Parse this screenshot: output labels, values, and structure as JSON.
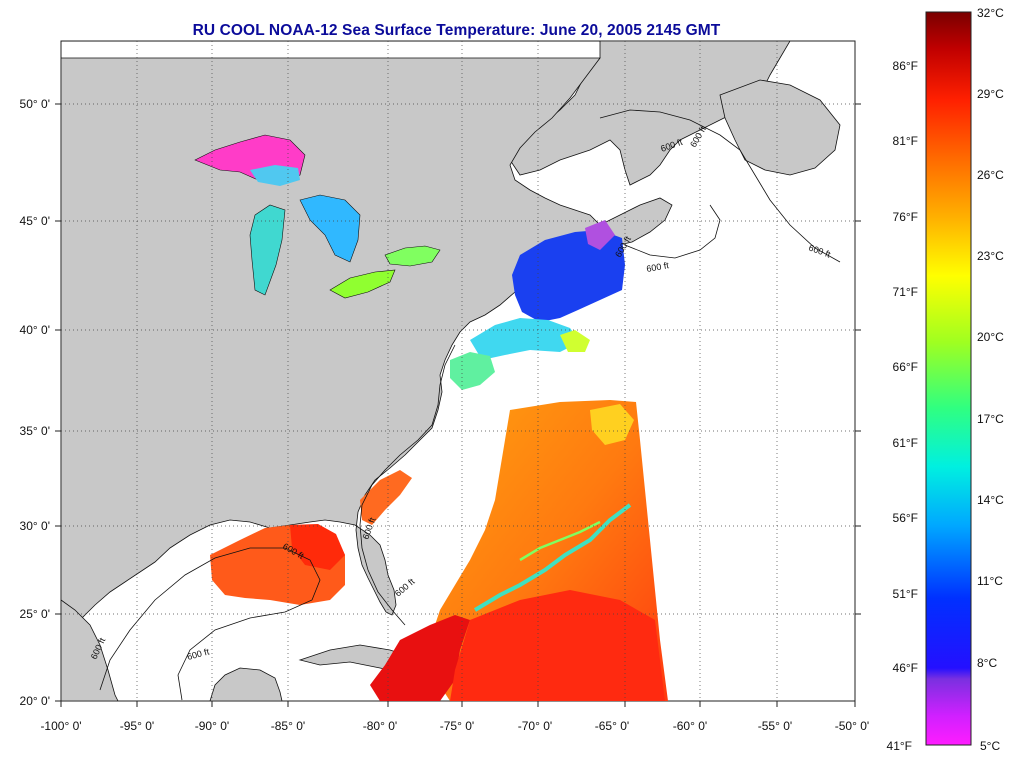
{
  "title": "RU COOL  NOAA-12  Sea Surface Temperature:  June 20, 2005 2145 GMT",
  "map": {
    "lon_range": [
      -100,
      -50
    ],
    "lat_range": [
      20,
      52.5
    ],
    "lon_ticks": [
      "-100° 0'",
      "-95° 0'",
      "-90° 0'",
      "-85° 0'",
      "-80° 0'",
      "-75° 0'",
      "-70° 0'",
      "-65° 0'",
      "-60° 0'",
      "-55° 0'",
      "-50° 0'"
    ],
    "lat_ticks": [
      "20° 0'",
      "25° 0'",
      "30° 0'",
      "35° 0'",
      "40° 0'",
      "45° 0'",
      "50° 0'"
    ],
    "contour_labels": [
      "600 ft",
      "600 ft",
      "600 ft",
      "600 ft",
      "600 ft",
      "600 ft",
      "600 ft",
      "600 ft",
      "600 ft",
      "600 ft"
    ],
    "colors": {
      "land": "#c8c8c8",
      "no_data": "#ffffff",
      "grid": "#555555"
    }
  },
  "colorbar": {
    "celsius_labels": [
      "32°C",
      "29°C",
      "26°C",
      "23°C",
      "20°C",
      "17°C",
      "14°C",
      "11°C",
      "8°C",
      "5°C"
    ],
    "fahrenheit_labels": [
      "86°F",
      "81°F",
      "76°F",
      "71°F",
      "66°F",
      "61°F",
      "56°F",
      "51°F",
      "46°F",
      "41°F"
    ],
    "range_c": [
      5,
      32
    ],
    "stops": [
      "#ff00ff",
      "#a020f0",
      "#0000ff",
      "#0060ff",
      "#00c0ff",
      "#00ffc0",
      "#60ff40",
      "#ffff00",
      "#ffa000",
      "#ff4000",
      "#ff0000",
      "#7a0000"
    ]
  }
}
